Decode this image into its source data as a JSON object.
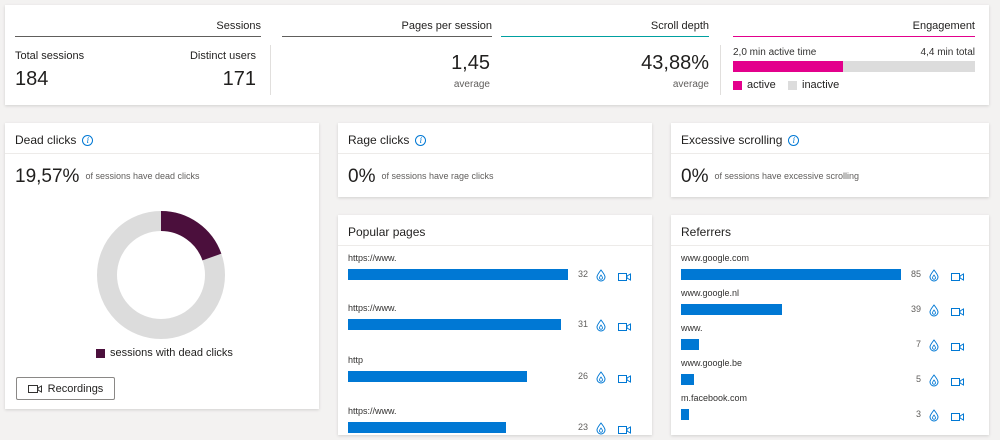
{
  "sessions": {
    "header": "Sessions",
    "total_label": "Total sessions",
    "total_value": "184",
    "distinct_label": "Distinct users",
    "distinct_value": "171"
  },
  "pages_per_session": {
    "header": "Pages per session",
    "value": "1,45",
    "sub": "average"
  },
  "scroll_depth": {
    "header": "Scroll depth",
    "value": "43,88%",
    "sub": "average"
  },
  "engagement": {
    "header": "Engagement",
    "active_time": "2,0 min active time",
    "total_time": "4,4 min total",
    "active_fraction": 0.4545,
    "legend_active": "active",
    "legend_inactive": "inactive",
    "active_color": "#e3008c",
    "inactive_color": "#dcdcdc"
  },
  "dead_clicks": {
    "title": "Dead clicks",
    "value": "19,57%",
    "note": "of sessions have dead clicks",
    "legend": "sessions with dead clicks",
    "fraction": 0.1957,
    "color": "#4b0f3c",
    "button": "Recordings"
  },
  "rage_clicks": {
    "title": "Rage clicks",
    "value": "0%",
    "note": "of sessions have rage clicks"
  },
  "excessive_scrolling": {
    "title": "Excessive scrolling",
    "value": "0%",
    "note": "of sessions have excessive scrolling"
  },
  "popular_pages": {
    "title": "Popular pages",
    "max": 32,
    "rows": [
      {
        "url": "https://www.",
        "value": 32
      },
      {
        "url": "https://www.",
        "value": 31
      },
      {
        "url": "http",
        "value": 26
      },
      {
        "url": "https://www.",
        "value": 23
      }
    ]
  },
  "referrers": {
    "title": "Referrers",
    "max": 85,
    "rows": [
      {
        "url": "www.google.com",
        "value": 85
      },
      {
        "url": "www.google.nl",
        "value": 39
      },
      {
        "url": "www.",
        "value": 7
      },
      {
        "url": "www.google.be",
        "value": 5
      },
      {
        "url": "m.facebook.com",
        "value": 3
      }
    ]
  },
  "icons": {
    "info": "info-icon",
    "heatmap": "heatmap-icon",
    "recording": "recording-icon"
  }
}
